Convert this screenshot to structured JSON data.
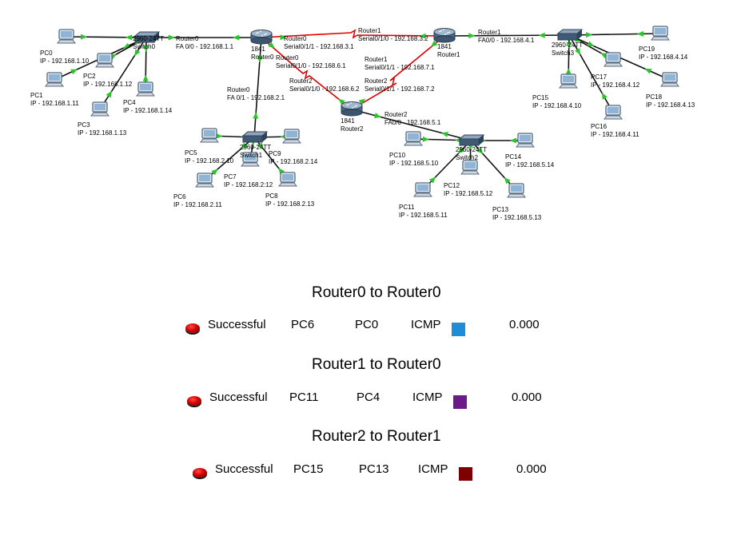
{
  "colors": {
    "link": "#111111",
    "serial_link": "#e00000",
    "up_arrow": "#29c529",
    "device": "#556b80",
    "sw1": "#1f8dd6",
    "sw2": "#6b1a8a",
    "sw3": "#7f0000"
  },
  "devices": {
    "pc0": [
      "PC0",
      "IP - 192.168.1.10"
    ],
    "pc1": [
      "PC1",
      "IP - 192.168.1.11"
    ],
    "pc2": [
      "PC2",
      "IP - 192.168.1.12"
    ],
    "pc3": [
      "PC3",
      "IP - 192.168.1.13"
    ],
    "pc4": [
      "PC4",
      "IP - 192.168.1.14"
    ],
    "switch0": [
      "2960-24TT",
      "Switch0"
    ],
    "router0": [
      "1841",
      "Router0"
    ],
    "router0_fa00": [
      "Router0",
      "FA 0/0 - 192.168.1.1"
    ],
    "router0_s011": [
      "Router0",
      "Serial0/1/1 - 192.168.3.1"
    ],
    "router0_s010": [
      "Router0",
      "Serial0/1/0 - 192.168.6.1"
    ],
    "router0_fa01": [
      "Router0",
      "FA 0/1 - 192.168.2.1"
    ],
    "router1": [
      "1841",
      "Router1"
    ],
    "router1_s010": [
      "Router1",
      "Serial0/1/0 - 192.168.3.2"
    ],
    "router1_fa00": [
      "Router1",
      "FA0/0 - 192.168.4.1"
    ],
    "router1_s011": [
      "Router1",
      "Serial0/1/1 - 192.168.7.1"
    ],
    "router2": [
      "1841",
      "Router2"
    ],
    "router2_s010": [
      "Router2",
      "Serial0/1/0 - 192.168.6.2"
    ],
    "router2_s011": [
      "Router2",
      "Serial0/1/1 - 192.168.7.2"
    ],
    "router2_fa00": [
      "Router2",
      "FA0/0 - 192.168.5.1"
    ],
    "switch1": [
      "2960-24TT",
      "Switch1"
    ],
    "pc5": [
      "PC5",
      "IP - 192.168.2.10"
    ],
    "pc6": [
      "PC6",
      "IP - 192.168.2.11"
    ],
    "pc7": [
      "PC7",
      "IP - 192.168.2:12"
    ],
    "pc8": [
      "PC8",
      "IP - 192.168.2.13"
    ],
    "pc9": [
      "PC9",
      "IP - 192.168.2.14"
    ],
    "switch2": [
      "2960-24TT",
      "Switch2"
    ],
    "pc10": [
      "PC10",
      "IP - 192.168.5.10"
    ],
    "pc11": [
      "PC11",
      "IP - 192.168.5.11"
    ],
    "pc12": [
      "PC12",
      "IP - 192.168.5.12"
    ],
    "pc13": [
      "PC13",
      "IP - 192.168.5.13"
    ],
    "pc14": [
      "PC14",
      "IP - 192.168.5.14"
    ],
    "switch3": [
      "2960-24TT",
      "Switch3"
    ],
    "pc15": [
      "PC15",
      "IP - 192.168.4.10"
    ],
    "pc16": [
      "PC16",
      "IP - 192.168.4.11"
    ],
    "pc17": [
      "PC17",
      "IP - 192.168.4.12"
    ],
    "pc18": [
      "PC18",
      "IP - 192.168.4.13"
    ],
    "pc19": [
      "PC19",
      "IP - 192.168.4.14"
    ]
  },
  "sections": [
    {
      "title": "Router0 to Router0",
      "status": "Successful",
      "source": "PC6",
      "destination": "PC0",
      "type": "ICMP",
      "color": "#1f8dd6",
      "time": "0.000"
    },
    {
      "title": "Router1 to Router0",
      "status": "Successful",
      "source": "PC11",
      "destination": "PC4",
      "type": "ICMP",
      "color": "#6b1a8a",
      "time": "0.000"
    },
    {
      "title": "Router2 to Router1",
      "status": "Successful",
      "source": "PC15",
      "destination": "PC13",
      "type": "ICMP",
      "color": "#7f0000",
      "time": "0.000"
    }
  ]
}
